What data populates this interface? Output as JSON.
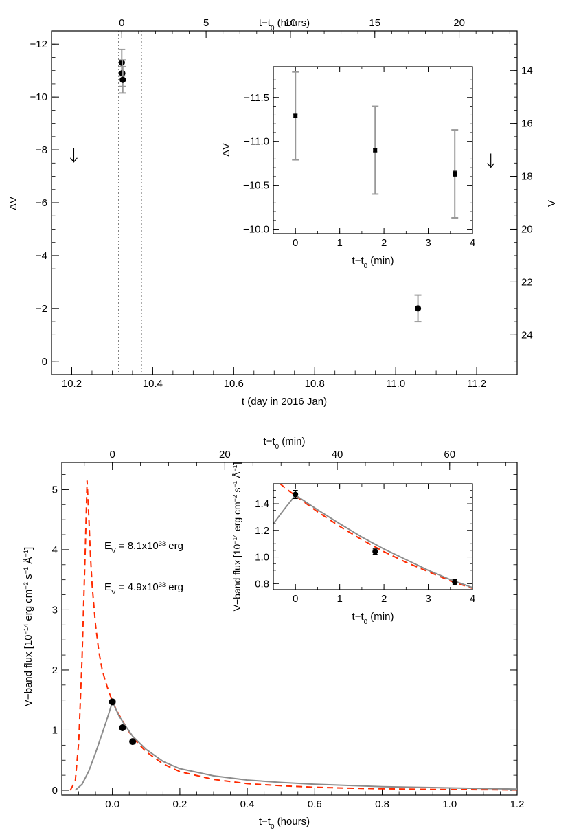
{
  "chart_data": [
    {
      "type": "scatter",
      "panel": "top",
      "xlabel": "t (day in 2016 Jan)",
      "ylabel": "ΔV",
      "ylabel_right": "V",
      "xlabel_top_main": "t−t",
      "xlabel_top_sub": "0",
      "xlabel_top_unit": " (hours)",
      "xlim": [
        10.15,
        11.3
      ],
      "ylim": [
        0.5,
        -12.5
      ],
      "xticks": [
        "10.2",
        "10.4",
        "10.6",
        "10.8",
        "11.0",
        "11.2"
      ],
      "xtick_values": [
        10.2,
        10.4,
        10.6,
        10.8,
        11.0,
        11.2
      ],
      "yticks": [
        "−12",
        "−10",
        "−8",
        "−6",
        "−4",
        "−2",
        "0"
      ],
      "ytick_values": [
        -12,
        -10,
        -8,
        -6,
        -4,
        -2,
        0
      ],
      "top_ticks": [
        "0",
        "5",
        "10",
        "15",
        "20"
      ],
      "top_tick_values": [
        0,
        5,
        10,
        15,
        20
      ],
      "right_ticks": [
        "14",
        "16",
        "18",
        "20",
        "22",
        "24"
      ],
      "right_tick_values": [
        14,
        16,
        18,
        20,
        22,
        24
      ],
      "points": [
        {
          "x": 10.3235,
          "y": -11.3,
          "err_sys": 0.5,
          "err_stat": 0.05
        },
        {
          "x": 10.3247,
          "y": -10.9,
          "err_sys": 0.5,
          "err_stat": 0.05
        },
        {
          "x": 10.326,
          "y": -10.65,
          "err_sys": 0.5,
          "err_stat": 0.05
        },
        {
          "x": 11.055,
          "y": -2.0,
          "err_sys": 0.5,
          "err_stat": 0.15
        }
      ],
      "upper_limits": [
        {
          "x": 10.205,
          "y": -7.8
        },
        {
          "x": 11.235,
          "y": -7.6
        }
      ],
      "vlines": [
        10.316,
        10.372
      ],
      "band": [
        -0.5,
        0.5
      ],
      "colors": {
        "band": "#8c8c8c",
        "errorbar": "#999999",
        "points": "#000000"
      },
      "inset": {
        "xlabel_main": "t−t",
        "xlabel_sub": "0",
        "xlabel_unit": " (min)",
        "ylabel": "ΔV",
        "xlim": [
          -0.5,
          4
        ],
        "ylim": [
          -9.95,
          -11.85
        ],
        "xticks": [
          "0",
          "1",
          "2",
          "3",
          "4"
        ],
        "xtick_values": [
          0,
          1,
          2,
          3,
          4
        ],
        "yticks": [
          "−11.5",
          "−11.0",
          "−10.5",
          "−10.0"
        ],
        "ytick_values": [
          -11.5,
          -11.0,
          -10.5,
          -10.0
        ],
        "points": [
          {
            "x": 0,
            "y": -11.29,
            "err_sys": 0.5,
            "err_stat": 0.02
          },
          {
            "x": 1.8,
            "y": -10.9,
            "err_sys": 0.5,
            "err_stat": 0.02
          },
          {
            "x": 3.6,
            "y": -10.63,
            "err_sys": 0.5,
            "err_stat": 0.03
          }
        ]
      }
    },
    {
      "type": "line",
      "panel": "bottom",
      "xlabel_main": "t−t",
      "xlabel_sub": "0",
      "xlabel_unit": " (hours)",
      "ylabel_main": "V−band flux [10",
      "ylabel_exp1": "−14",
      "ylabel_mid": " erg cm",
      "ylabel_exp2": "−2",
      "ylabel_mid2": " s",
      "ylabel_exp3": "−1",
      "ylabel_mid3": " Å",
      "ylabel_exp4": "−1",
      "ylabel_end": "]",
      "xlabel_top_main": "t−t",
      "xlabel_top_sub": "0",
      "xlabel_top_unit": " (min)",
      "xlim": [
        -0.15,
        1.2
      ],
      "ylim": [
        -0.08,
        5.45
      ],
      "xticks": [
        "0.0",
        "0.2",
        "0.4",
        "0.6",
        "0.8",
        "1.0",
        "1.2"
      ],
      "xtick_values": [
        0,
        0.2,
        0.4,
        0.6,
        0.8,
        1.0,
        1.2
      ],
      "yticks": [
        "0",
        "1",
        "2",
        "3",
        "4",
        "5"
      ],
      "ytick_values": [
        0,
        1,
        2,
        3,
        4,
        5
      ],
      "top_ticks": [
        "0",
        "20",
        "40",
        "60"
      ],
      "top_tick_values": [
        0,
        20,
        40,
        60
      ],
      "annotations": [
        {
          "main": "E",
          "sub": "V",
          "pre": " = 8.1x10",
          "sup": "33",
          "post": " erg",
          "color": "#ff2a00"
        },
        {
          "main": "E",
          "sub": "V",
          "pre": " = 4.9x10",
          "sup": "33",
          "post": " erg",
          "color": "#8c8c8c"
        }
      ],
      "series": [
        {
          "model": "E_V = 8.1x10^33 erg",
          "style": "dashed",
          "color": "#ff2a00",
          "x": [
            -0.125,
            -0.11,
            -0.1,
            -0.09,
            -0.08,
            -0.075,
            -0.07,
            -0.065,
            -0.06,
            -0.05,
            -0.04,
            -0.03,
            -0.02,
            -0.01,
            0,
            0.02,
            0.04,
            0.06,
            0.1,
            0.15,
            0.2,
            0.3,
            0.4,
            0.5,
            0.6,
            0.7,
            0.8,
            0.9,
            1.0,
            1.1,
            1.2
          ],
          "y": [
            0.0,
            0.15,
            0.8,
            2.2,
            4.1,
            5.15,
            4.55,
            3.9,
            3.4,
            2.75,
            2.3,
            2.0,
            1.8,
            1.63,
            1.47,
            1.25,
            1.06,
            0.88,
            0.64,
            0.44,
            0.31,
            0.18,
            0.11,
            0.075,
            0.05,
            0.035,
            0.025,
            0.018,
            0.013,
            0.01,
            0.007
          ]
        },
        {
          "model": "E_V = 4.9x10^33 erg",
          "style": "solid",
          "color": "#8c8c8c",
          "x": [
            -0.11,
            -0.09,
            -0.07,
            -0.05,
            -0.03,
            -0.015,
            0,
            0.02,
            0.04,
            0.06,
            0.1,
            0.15,
            0.2,
            0.3,
            0.4,
            0.5,
            0.6,
            0.7,
            0.8,
            0.9,
            1.0,
            1.1,
            1.2
          ],
          "y": [
            0.0,
            0.1,
            0.32,
            0.62,
            0.95,
            1.2,
            1.47,
            1.23,
            1.06,
            0.9,
            0.68,
            0.48,
            0.36,
            0.24,
            0.17,
            0.13,
            0.1,
            0.08,
            0.06,
            0.05,
            0.04,
            0.03,
            0.02
          ]
        }
      ],
      "points": [
        {
          "x": 0.0,
          "y": 1.47
        },
        {
          "x": 0.03,
          "y": 1.04
        },
        {
          "x": 0.06,
          "y": 0.81
        }
      ],
      "inset": {
        "xlabel_main": "t−t",
        "xlabel_sub": "0",
        "xlabel_unit": " (min)",
        "ylabel_main": "V−band flux [10",
        "ylabel_exp1": "−14",
        "ylabel_mid": " erg cm",
        "ylabel_exp2": "−2",
        "ylabel_mid2": " s",
        "ylabel_exp3": "−1",
        "ylabel_mid3": " Å",
        "ylabel_exp4": "−1",
        "ylabel_end": "]",
        "xlim": [
          -0.5,
          4
        ],
        "ylim": [
          0.755,
          1.55
        ],
        "xticks": [
          "0",
          "1",
          "2",
          "3",
          "4"
        ],
        "xtick_values": [
          0,
          1,
          2,
          3,
          4
        ],
        "yticks": [
          "0.8",
          "1.0",
          "1.2",
          "1.4"
        ],
        "ytick_values": [
          0.8,
          1.0,
          1.2,
          1.4
        ],
        "series": [
          {
            "style": "dashed",
            "color": "#ff2a00",
            "x": [
              -0.35,
              -0.2,
              0,
              0.5,
              1.0,
              1.5,
              2.0,
              2.5,
              3.0,
              3.5,
              4.0
            ],
            "y": [
              1.55,
              1.51,
              1.46,
              1.34,
              1.23,
              1.13,
              1.04,
              0.96,
              0.89,
              0.82,
              0.765
            ]
          },
          {
            "style": "solid",
            "color": "#8c8c8c",
            "x": [
              -0.5,
              -0.25,
              0,
              0.5,
              1.0,
              1.5,
              2.0,
              2.5,
              3.0,
              3.5,
              4.0
            ],
            "y": [
              1.25,
              1.36,
              1.465,
              1.355,
              1.25,
              1.15,
              1.06,
              0.98,
              0.9,
              0.83,
              0.77
            ]
          }
        ],
        "points": [
          {
            "x": 0,
            "y": 1.47,
            "err": 0.03
          },
          {
            "x": 1.8,
            "y": 1.04,
            "err": 0.02
          },
          {
            "x": 3.6,
            "y": 0.81,
            "err": 0.02
          }
        ]
      }
    }
  ]
}
